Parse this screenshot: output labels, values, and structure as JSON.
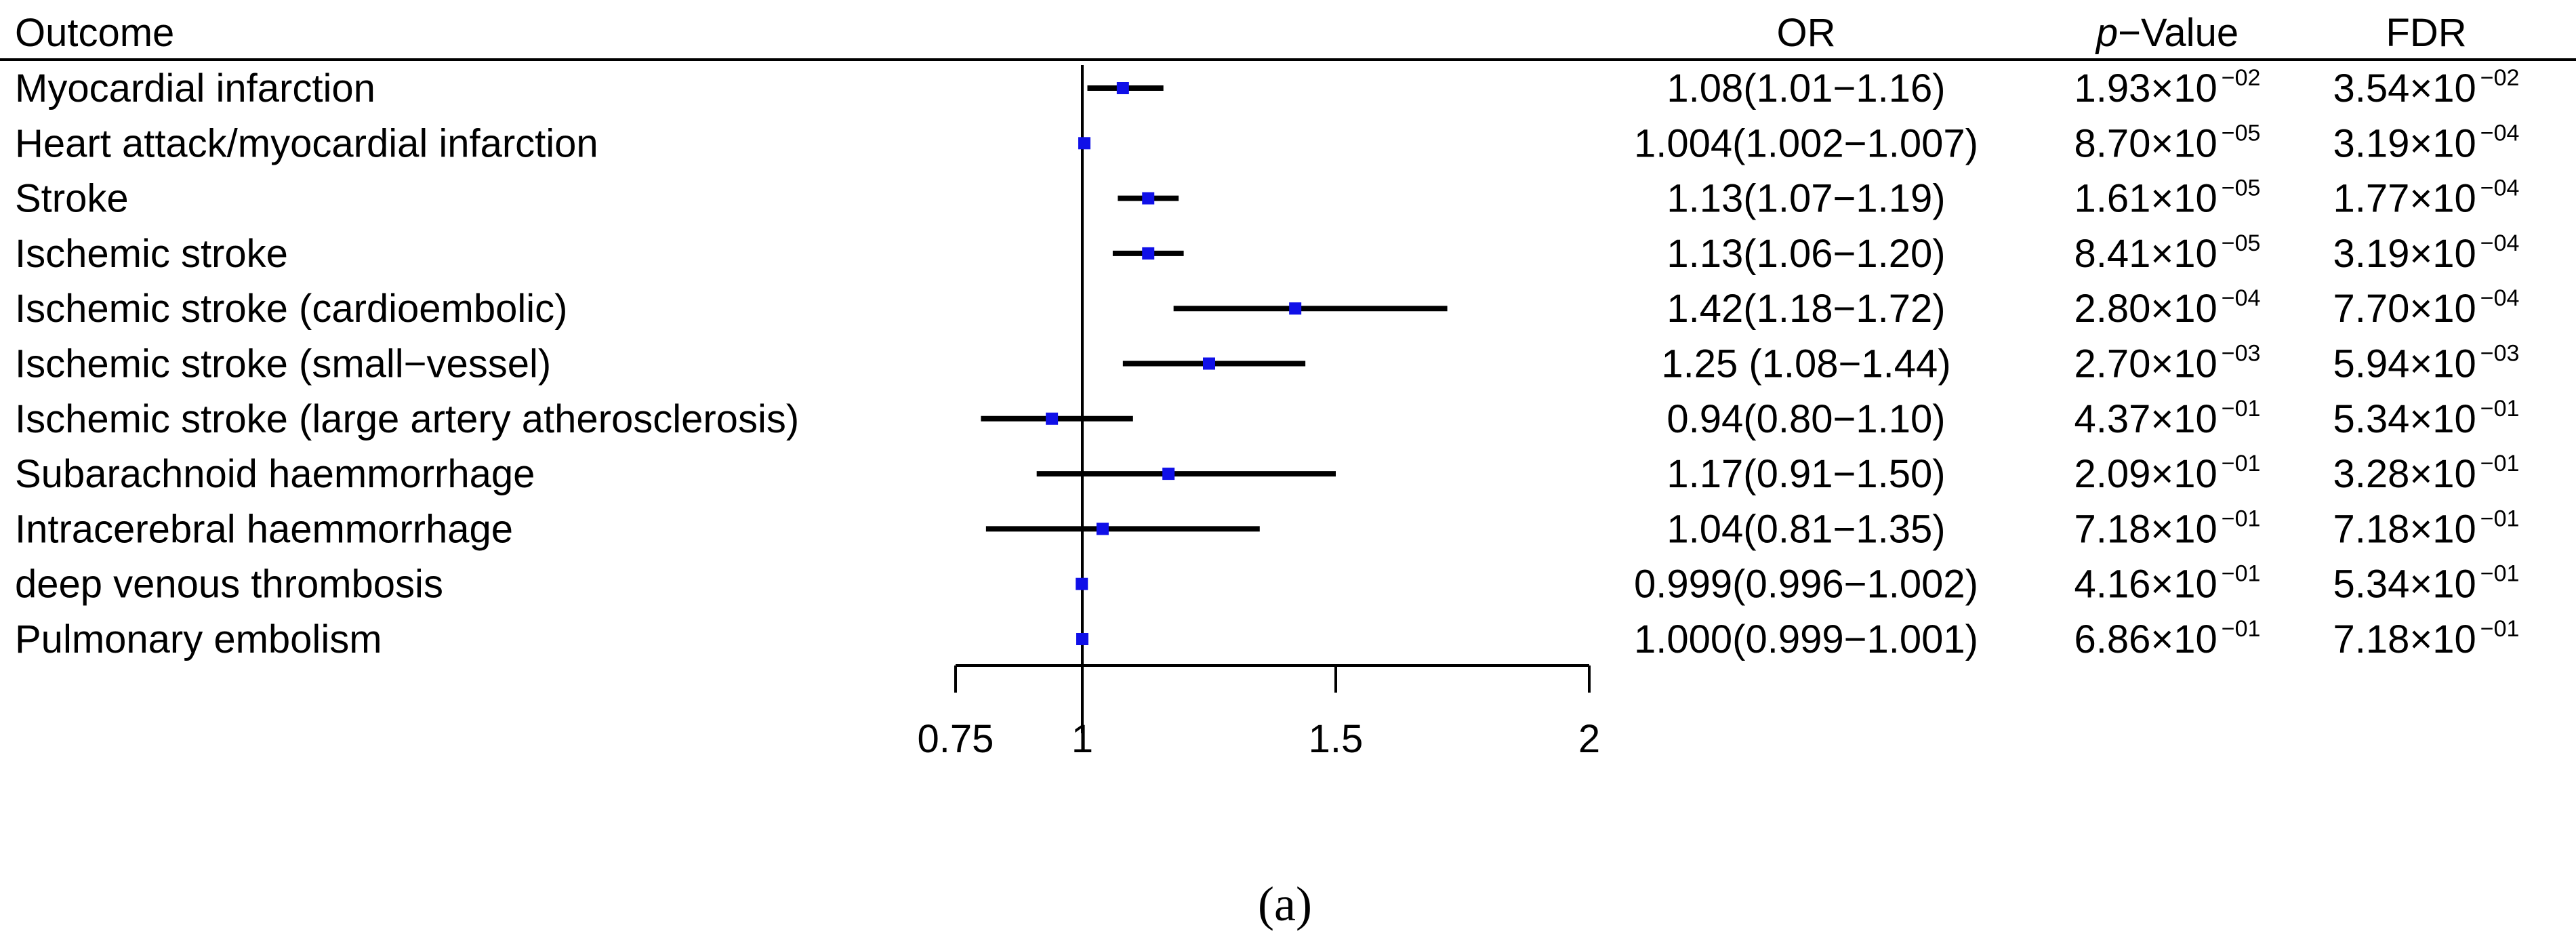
{
  "chart_data": {
    "type": "forest",
    "columns": {
      "outcome": "Outcome",
      "or": "OR",
      "p_italic": "p",
      "p_rest": "−Value",
      "fdr": "FDR"
    },
    "x_ticks": [
      {
        "value": 0.75,
        "label": "0.75"
      },
      {
        "value": 1,
        "label": "1"
      },
      {
        "value": 1.5,
        "label": "1.5"
      },
      {
        "value": 2,
        "label": "2"
      }
    ],
    "axis_range": [
      0.75,
      2
    ],
    "reference_value": 1,
    "rows": [
      {
        "outcome": "Myocardial infarction",
        "or": 1.08,
        "lo": 1.01,
        "hi": 1.16,
        "or_text": "1.08(1.01−1.16)",
        "p_mant": "1.93×10",
        "p_exp": "−02",
        "fdr_mant": "3.54×10",
        "fdr_exp": "−02"
      },
      {
        "outcome": "Heart attack/myocardial infarction",
        "or": 1.004,
        "lo": 1.002,
        "hi": 1.007,
        "or_text": "1.004(1.002−1.007)",
        "p_mant": "8.70×10",
        "p_exp": "−05",
        "fdr_mant": "3.19×10",
        "fdr_exp": "−04"
      },
      {
        "outcome": "Stroke",
        "or": 1.13,
        "lo": 1.07,
        "hi": 1.19,
        "or_text": "1.13(1.07−1.19)",
        "p_mant": "1.61×10",
        "p_exp": "−05",
        "fdr_mant": "1.77×10",
        "fdr_exp": "−04"
      },
      {
        "outcome": "Ischemic stroke",
        "or": 1.13,
        "lo": 1.06,
        "hi": 1.2,
        "or_text": "1.13(1.06−1.20)",
        "p_mant": "8.41×10",
        "p_exp": "−05",
        "fdr_mant": "3.19×10",
        "fdr_exp": "−04"
      },
      {
        "outcome": "Ischemic stroke (cardioembolic)",
        "or": 1.42,
        "lo": 1.18,
        "hi": 1.72,
        "or_text": "1.42(1.18−1.72)",
        "p_mant": "2.80×10",
        "p_exp": "−04",
        "fdr_mant": "7.70×10",
        "fdr_exp": "−04"
      },
      {
        "outcome": "Ischemic stroke (small−vessel)",
        "or": 1.25,
        "lo": 1.08,
        "hi": 1.44,
        "or_text": "1.25 (1.08−1.44)",
        "p_mant": "2.70×10",
        "p_exp": "−03",
        "fdr_mant": "5.94×10",
        "fdr_exp": "−03"
      },
      {
        "outcome": "Ischemic stroke (large artery atherosclerosis)",
        "or": 0.94,
        "lo": 0.8,
        "hi": 1.1,
        "or_text": "0.94(0.80−1.10)",
        "p_mant": "4.37×10",
        "p_exp": "−01",
        "fdr_mant": "5.34×10",
        "fdr_exp": "−01"
      },
      {
        "outcome": "Subarachnoid haemmorrhage",
        "or": 1.17,
        "lo": 0.91,
        "hi": 1.5,
        "or_text": "1.17(0.91−1.50)",
        "p_mant": "2.09×10",
        "p_exp": "−01",
        "fdr_mant": "3.28×10",
        "fdr_exp": "−01"
      },
      {
        "outcome": "Intracerebral haemmorrhage",
        "or": 1.04,
        "lo": 0.81,
        "hi": 1.35,
        "or_text": "1.04(0.81−1.35)",
        "p_mant": "7.18×10",
        "p_exp": "−01",
        "fdr_mant": "7.18×10",
        "fdr_exp": "−01"
      },
      {
        "outcome": "deep venous thrombosis",
        "or": 0.999,
        "lo": 0.996,
        "hi": 1.002,
        "or_text": "0.999(0.996−1.002)",
        "p_mant": "4.16×10",
        "p_exp": "−01",
        "fdr_mant": "5.34×10",
        "fdr_exp": "−01"
      },
      {
        "outcome": "Pulmonary embolism",
        "or": 1.0,
        "lo": 0.999,
        "hi": 1.001,
        "or_text": "1.000(0.999−1.001)",
        "p_mant": "6.86×10",
        "p_exp": "−01",
        "fdr_mant": "7.18×10",
        "fdr_exp": "−01"
      }
    ],
    "marker_color": "#1010e8",
    "line_color": "#000000",
    "caption": "(a)"
  }
}
